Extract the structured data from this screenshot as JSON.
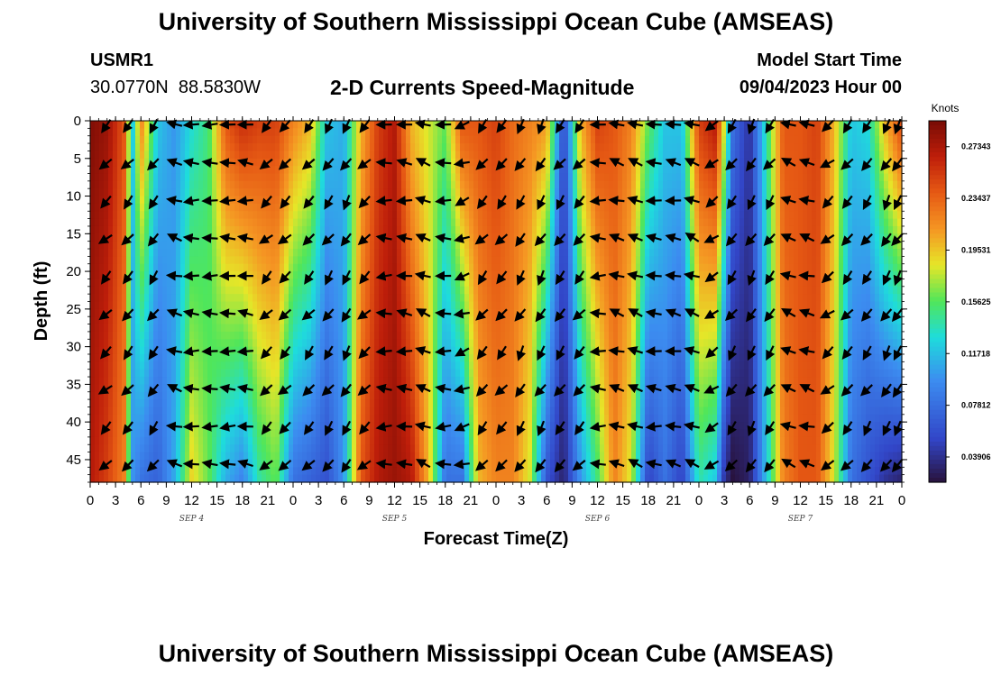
{
  "header": {
    "title": "University of Southern Mississippi Ocean Cube (AMSEAS)",
    "station": "USMR1",
    "lat": "30.0770N",
    "lon": "88.5830W",
    "subtitle": "2-D Currents Speed-Magnitude",
    "model_start_label": "Model Start Time",
    "model_start_value": "09/04/2023 Hour 00"
  },
  "footer": {
    "title": "University of Southern Mississippi Ocean Cube (AMSEAS)"
  },
  "chart_data": {
    "type": "heatmap",
    "title": "2-D Currents Speed-Magnitude",
    "xlabel": "Forecast Time(Z)",
    "ylabel": "Depth (ft)",
    "x_tick_labels": [
      "0",
      "3",
      "6",
      "9",
      "12",
      "15",
      "18",
      "21",
      "0",
      "3",
      "6",
      "9",
      "12",
      "15",
      "18",
      "21",
      "0",
      "3",
      "6",
      "9",
      "12",
      "15",
      "18",
      "21",
      "0",
      "3",
      "6",
      "9",
      "12",
      "15",
      "18",
      "21",
      "0"
    ],
    "x_range_hours": [
      0,
      96
    ],
    "date_labels": [
      {
        "label": "SEP 4",
        "hour": 12
      },
      {
        "label": "SEP 5",
        "hour": 36
      },
      {
        "label": "SEP 6",
        "hour": 60
      },
      {
        "label": "SEP 7",
        "hour": 84
      }
    ],
    "y_tick_labels": [
      "0",
      "5",
      "10",
      "15",
      "20",
      "25",
      "30",
      "35",
      "40",
      "45"
    ],
    "y_range_ft": [
      0,
      48
    ],
    "colorbar": {
      "units": "Knots",
      "range": [
        0.02,
        0.293
      ],
      "ticks": [
        "0.27343",
        "0.23437",
        "0.19531",
        "0.15625",
        "0.11718",
        "0.07812",
        "0.03906"
      ],
      "tick_values": [
        0.27343,
        0.23437,
        0.19531,
        0.15625,
        0.11718,
        0.07812,
        0.03906
      ]
    },
    "speed_profile_hours": [
      0,
      2,
      4,
      5,
      6,
      8,
      10,
      12,
      14,
      16,
      18,
      20,
      22,
      24,
      26,
      28,
      30,
      32,
      34,
      36,
      38,
      40,
      42,
      44,
      46,
      48,
      50,
      52,
      54,
      56,
      58,
      60,
      62,
      64,
      66,
      68,
      70,
      72,
      74,
      75,
      76,
      78,
      80,
      82,
      84,
      86,
      88,
      90,
      92,
      94,
      96
    ],
    "speed_surface_kn": [
      0.29,
      0.28,
      0.24,
      0.12,
      0.22,
      0.12,
      0.1,
      0.13,
      0.15,
      0.24,
      0.26,
      0.25,
      0.25,
      0.22,
      0.2,
      0.12,
      0.11,
      0.2,
      0.25,
      0.27,
      0.2,
      0.18,
      0.16,
      0.24,
      0.24,
      0.25,
      0.23,
      0.22,
      0.21,
      0.05,
      0.2,
      0.25,
      0.24,
      0.22,
      0.16,
      0.12,
      0.12,
      0.25,
      0.27,
      0.18,
      0.08,
      0.04,
      0.14,
      0.24,
      0.24,
      0.25,
      0.2,
      0.12,
      0.13,
      0.2,
      0.25
    ],
    "speed_bottom_kn": [
      0.27,
      0.25,
      0.22,
      0.1,
      0.08,
      0.07,
      0.11,
      0.19,
      0.16,
      0.11,
      0.09,
      0.14,
      0.16,
      0.08,
      0.07,
      0.06,
      0.1,
      0.24,
      0.27,
      0.28,
      0.27,
      0.2,
      0.08,
      0.08,
      0.2,
      0.22,
      0.22,
      0.18,
      0.06,
      0.03,
      0.1,
      0.15,
      0.22,
      0.18,
      0.05,
      0.08,
      0.05,
      0.14,
      0.12,
      0.04,
      0.02,
      0.03,
      0.12,
      0.22,
      0.24,
      0.24,
      0.18,
      0.08,
      0.06,
      0.04,
      0.03
    ],
    "vector_times_hours": [
      2,
      4.6,
      7.6,
      10.2,
      12.2,
      14.4,
      16.5,
      18.6,
      21,
      23.2,
      26,
      28.3,
      30.4,
      32.6,
      35,
      37.4,
      39.6,
      42,
      44.2,
      46.5,
      48.8,
      51,
      53.4,
      55.7,
      58,
      60.3,
      62.5,
      64.7,
      66.9,
      69.2,
      71.4,
      73.7,
      76,
      78.3,
      80.5,
      82.8,
      85,
      87.4,
      89.7,
      92,
      94.3,
      95.6
    ],
    "vector_depths_ft": [
      0,
      5,
      10,
      15,
      20,
      25,
      30,
      35,
      40,
      45
    ],
    "vector_direction_profile_deg": [
      135,
      130,
      125,
      195,
      180,
      180,
      180,
      185,
      135,
      135,
      130,
      125,
      120,
      135,
      180,
      185,
      200,
      180,
      160,
      130,
      130,
      120,
      120,
      125,
      130,
      180,
      195,
      200,
      185,
      190,
      200,
      145,
      125,
      120,
      125,
      200,
      195,
      140,
      130,
      125,
      120,
      120
    ]
  }
}
